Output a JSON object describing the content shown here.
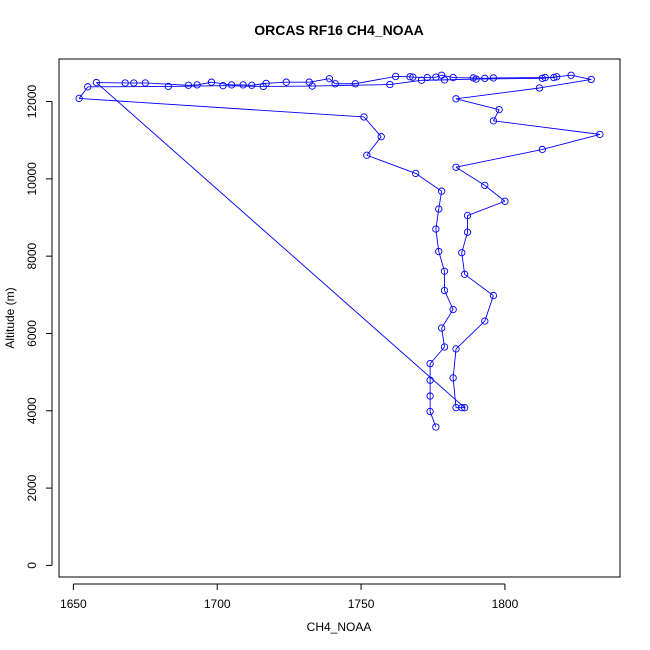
{
  "chart_data": {
    "type": "line",
    "title": "ORCAS RF16 CH4_NOAA",
    "xlabel": "CH4_NOAA",
    "ylabel": "Altitude (m)",
    "xlim": [
      1645,
      1840
    ],
    "ylim": [
      -300,
      13100
    ],
    "x_ticks": [
      1650,
      1700,
      1750,
      1800
    ],
    "y_ticks": [
      0,
      2000,
      4000,
      6000,
      8000,
      10000,
      12000
    ],
    "grid": false,
    "legend": "none",
    "series_color": "#0000ff",
    "series": [
      {
        "points": [
          [
            1776,
            3580
          ],
          [
            1774,
            3980
          ],
          [
            1774,
            4380
          ],
          [
            1774,
            4790
          ],
          [
            1774,
            5220
          ],
          [
            1779,
            5650
          ],
          [
            1778,
            6140
          ],
          [
            1782,
            6620
          ],
          [
            1779,
            7110
          ],
          [
            1779,
            7610
          ],
          [
            1777,
            8120
          ],
          [
            1776,
            8700
          ],
          [
            1777,
            9220
          ],
          [
            1778,
            9680
          ],
          [
            1769,
            10140
          ],
          [
            1752,
            10610
          ],
          [
            1757,
            11090
          ],
          [
            1751,
            11600
          ],
          [
            1652,
            12080
          ],
          [
            1655,
            12380
          ],
          [
            1683,
            12390
          ],
          [
            1702,
            12410
          ],
          [
            1716,
            12390
          ],
          [
            1733,
            12400
          ],
          [
            1760,
            12440
          ],
          [
            1771,
            12550
          ],
          [
            1779,
            12560
          ],
          [
            1790,
            12580
          ],
          [
            1813,
            12600
          ],
          [
            1823,
            12680
          ],
          [
            1830,
            12570
          ],
          [
            1812,
            12350
          ],
          [
            1783,
            12070
          ],
          [
            1798,
            11790
          ],
          [
            1796,
            11500
          ],
          [
            1833,
            11150
          ],
          [
            1813,
            10760
          ],
          [
            1783,
            10300
          ],
          [
            1793,
            9830
          ],
          [
            1800,
            9420
          ],
          [
            1787,
            9050
          ],
          [
            1787,
            8620
          ],
          [
            1785,
            8090
          ],
          [
            1786,
            7530
          ],
          [
            1796,
            6980
          ],
          [
            1793,
            6320
          ],
          [
            1783,
            5600
          ],
          [
            1782,
            4850
          ],
          [
            1783,
            4080
          ],
          [
            1785,
            4080
          ],
          [
            1786,
            4080
          ],
          [
            1658,
            12490
          ],
          [
            1668,
            12480
          ],
          [
            1671,
            12480
          ],
          [
            1675,
            12480
          ],
          [
            1690,
            12420
          ],
          [
            1693,
            12430
          ],
          [
            1698,
            12500
          ],
          [
            1705,
            12430
          ],
          [
            1709,
            12430
          ],
          [
            1712,
            12420
          ],
          [
            1717,
            12470
          ],
          [
            1724,
            12500
          ],
          [
            1732,
            12500
          ],
          [
            1739,
            12590
          ],
          [
            1741,
            12460
          ],
          [
            1748,
            12460
          ],
          [
            1762,
            12650
          ],
          [
            1767,
            12640
          ],
          [
            1768,
            12630
          ],
          [
            1773,
            12620
          ],
          [
            1776,
            12630
          ],
          [
            1778,
            12680
          ],
          [
            1782,
            12620
          ],
          [
            1789,
            12610
          ],
          [
            1793,
            12600
          ],
          [
            1796,
            12610
          ],
          [
            1814,
            12620
          ],
          [
            1817,
            12620
          ],
          [
            1818,
            12640
          ]
        ]
      }
    ]
  }
}
